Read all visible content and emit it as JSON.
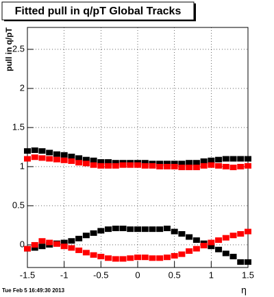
{
  "chart_data": {
    "type": "scatter",
    "title": "Fitted pull in q/pT  Global Tracks",
    "y_label": "pull in q/pT",
    "x_label": "η",
    "footer": "Tue Feb  5 16:49:30 2013",
    "x": [
      -1.5,
      -1.4,
      -1.3,
      -1.2,
      -1.1,
      -1.0,
      -0.9,
      -0.8,
      -0.7,
      -0.6,
      -0.5,
      -0.4,
      -0.3,
      -0.2,
      -0.1,
      0,
      0.1,
      0.2,
      0.3,
      0.4,
      0.5,
      0.6,
      0.7,
      0.8,
      0.9,
      1.0,
      1.1,
      1.2,
      1.3,
      1.4,
      1.5
    ],
    "series": [
      {
        "color": "#000000",
        "values": [
          1.2,
          1.21,
          1.2,
          1.18,
          1.16,
          1.15,
          1.13,
          1.11,
          1.09,
          1.08,
          1.06,
          1.06,
          1.05,
          1.05,
          1.05,
          1.05,
          1.05,
          1.04,
          1.04,
          1.04,
          1.04,
          1.04,
          1.05,
          1.05,
          1.07,
          1.08,
          1.09,
          1.1,
          1.1,
          1.1,
          1.1
        ]
      },
      {
        "color": "#ff0000",
        "values": [
          1.1,
          1.12,
          1.11,
          1.1,
          1.09,
          1.08,
          1.07,
          1.05,
          1.04,
          1.02,
          1.01,
          1.01,
          1.01,
          1.02,
          1.02,
          1.02,
          1.01,
          1.01,
          1.0,
          1.0,
          1.0,
          0.99,
          0.99,
          0.99,
          1.01,
          1.02,
          1.01,
          1.0,
          0.99,
          1.0,
          1.01
        ]
      },
      {
        "color": "#000000",
        "values": [
          -0.05,
          -0.04,
          -0.02,
          0.0,
          0.02,
          0.03,
          0.05,
          0.08,
          0.12,
          0.15,
          0.18,
          0.2,
          0.21,
          0.21,
          0.2,
          0.2,
          0.2,
          0.2,
          0.2,
          0.21,
          0.17,
          0.14,
          0.1,
          0.06,
          0.02,
          -0.02,
          -0.06,
          -0.11,
          -0.15,
          -0.22,
          -0.22
        ]
      },
      {
        "color": "#ff0000",
        "values": [
          -0.05,
          0.0,
          0.05,
          0.03,
          0.01,
          -0.02,
          -0.04,
          -0.07,
          -0.1,
          -0.13,
          -0.15,
          -0.17,
          -0.18,
          -0.18,
          -0.17,
          -0.16,
          -0.16,
          -0.17,
          -0.17,
          -0.16,
          -0.14,
          -0.12,
          -0.08,
          -0.05,
          -0.01,
          0.03,
          0.06,
          0.09,
          0.12,
          0.14,
          0.17
        ]
      }
    ],
    "xlim": [
      -1.5,
      1.5
    ],
    "xticks": [
      -1.5,
      -1,
      -0.5,
      0,
      0.5,
      1,
      1.5
    ],
    "ylim": [
      -0.29,
      2.78
    ],
    "yticks": [
      0,
      0.5,
      1,
      1.5,
      2,
      2.5
    ],
    "grid": true
  }
}
